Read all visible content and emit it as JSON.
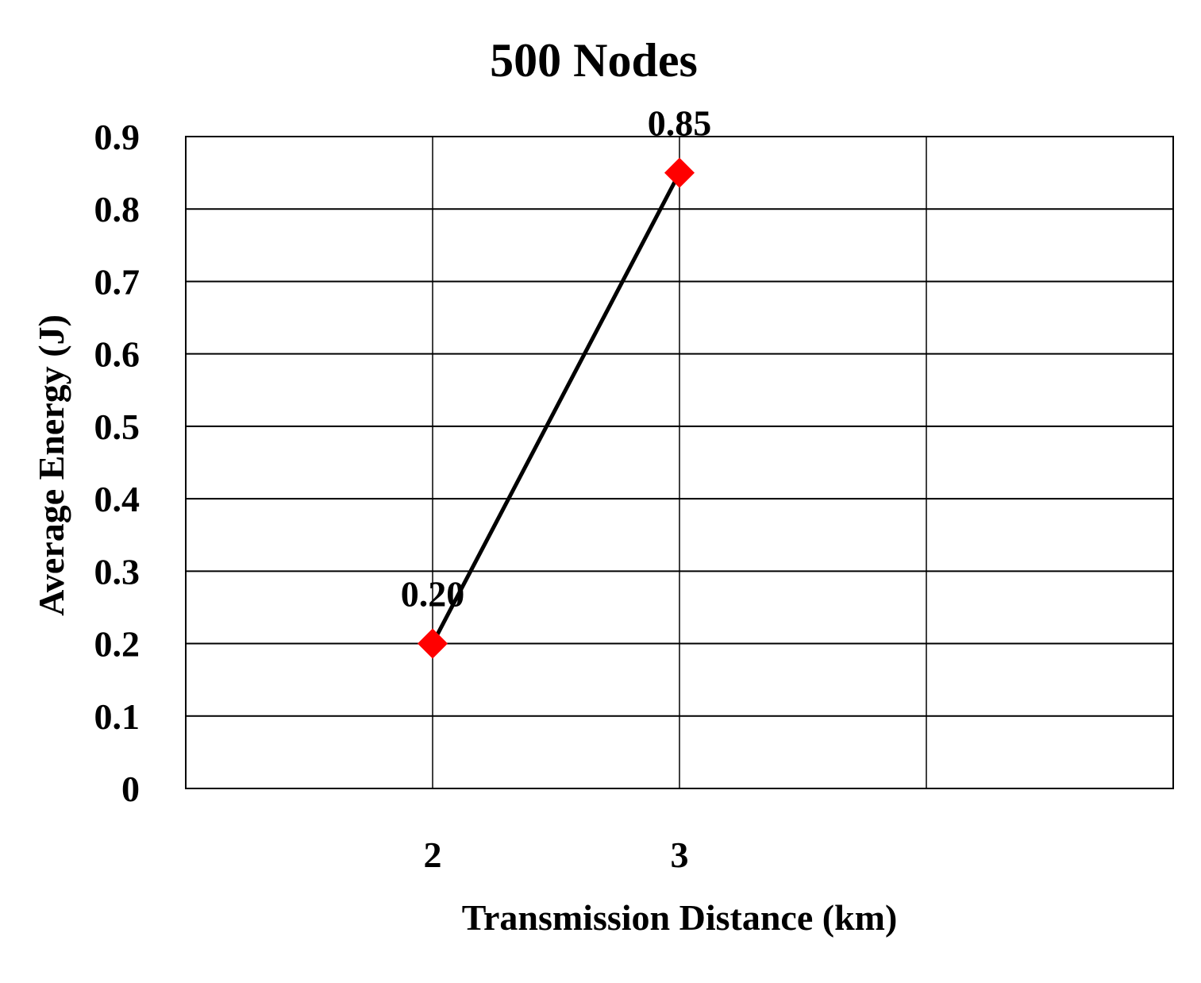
{
  "chart_data": {
    "type": "line",
    "title": "500 Nodes",
    "xlabel": "Transmission Distance (km)",
    "ylabel": "Average Energy (J)",
    "categories": [
      "2",
      "3"
    ],
    "series": [
      {
        "values": [
          0.2,
          0.85
        ],
        "data_labels": [
          "0.20",
          "0.85"
        ],
        "line_color": "#000000",
        "marker": "diamond",
        "marker_color": "#ff0000"
      }
    ],
    "ylim": [
      0,
      0.9
    ],
    "yticks": [
      "0",
      "0.1",
      "0.2",
      "0.3",
      "0.4",
      "0.5",
      "0.6",
      "0.7",
      "0.8",
      "0.9"
    ],
    "grid": true,
    "legend": "none"
  }
}
